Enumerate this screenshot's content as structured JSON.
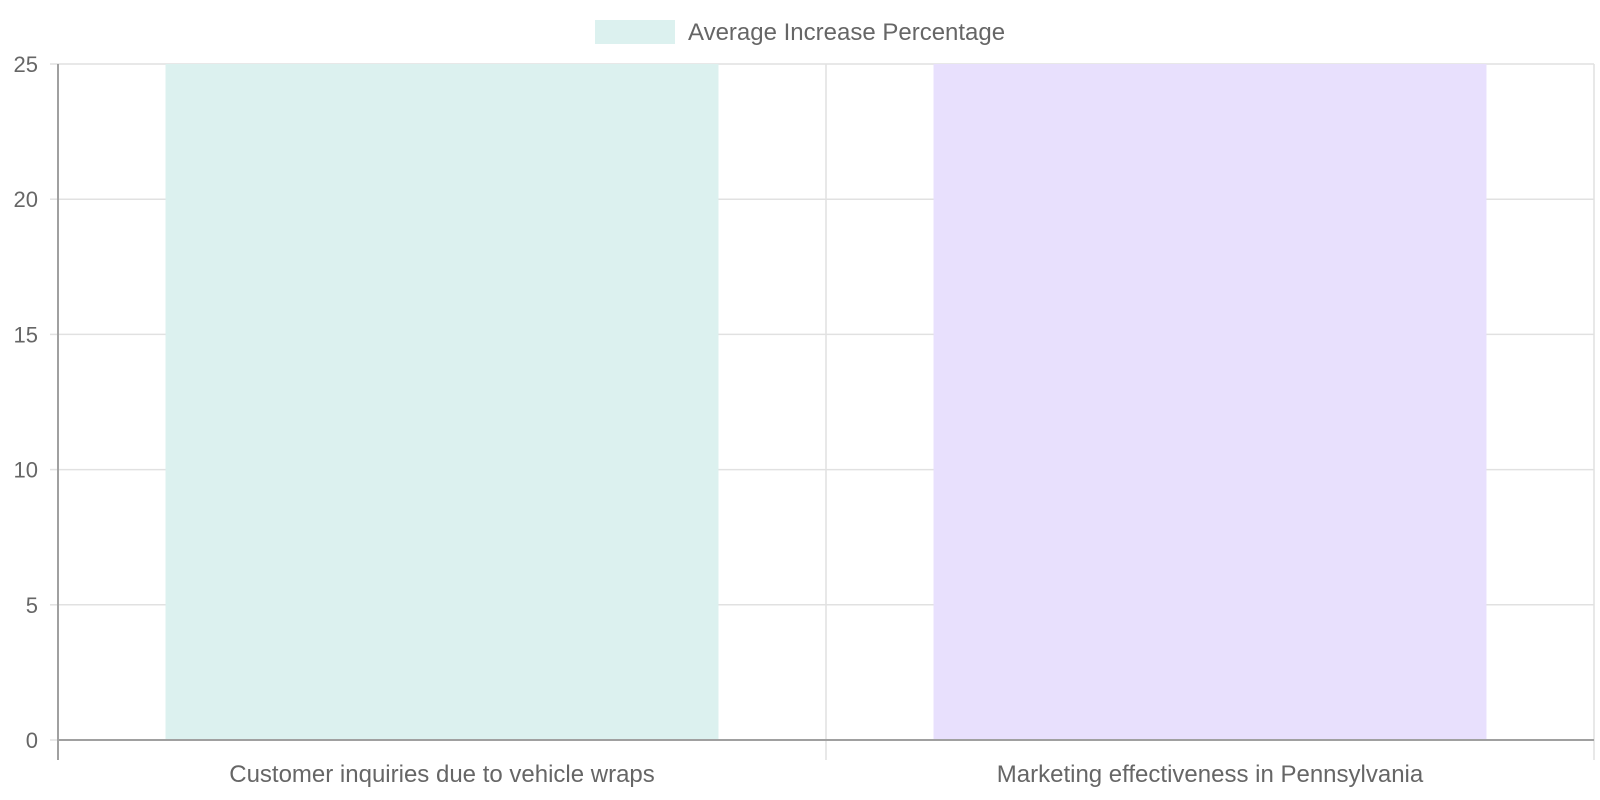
{
  "chart_data": {
    "type": "bar",
    "title": "",
    "xlabel": "",
    "ylabel": "",
    "categories": [
      "Customer inquiries due to vehicle wraps",
      "Marketing effectiveness in Pennsylvania"
    ],
    "series": [
      {
        "name": "Average Increase Percentage",
        "values": [
          25,
          25
        ],
        "colors": [
          "#dcf1ef",
          "#e8e0fd"
        ],
        "legend_color": "#dcf1ef"
      }
    ],
    "ylim": [
      0,
      25
    ],
    "yticks": [
      0,
      5,
      10,
      15,
      20,
      25
    ],
    "grid": true,
    "legend_position": "top-center"
  }
}
